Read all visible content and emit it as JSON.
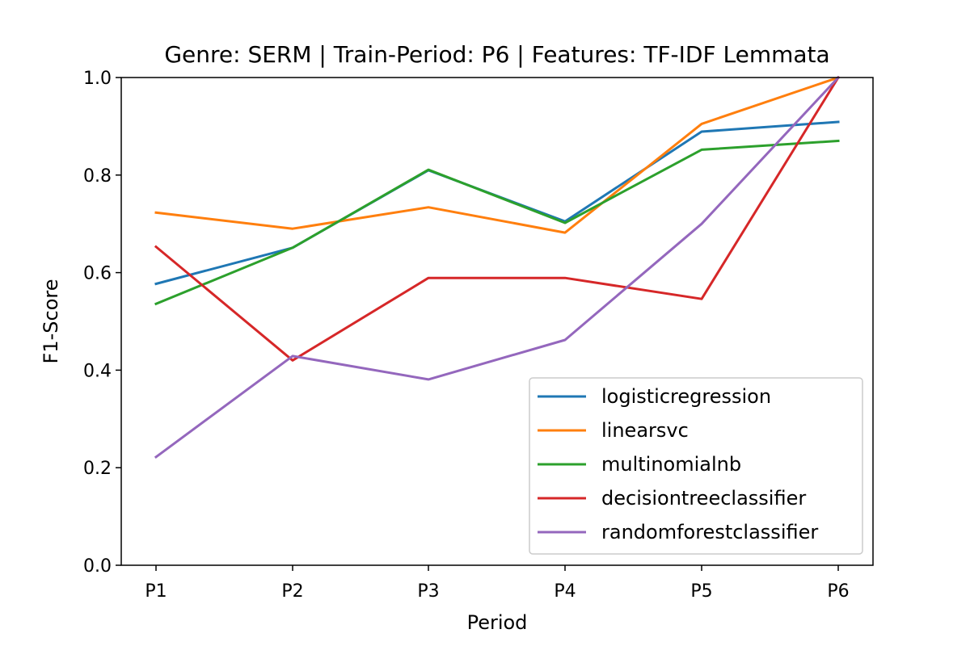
{
  "chart_data": {
    "type": "line",
    "title": "Genre: SERM | Train-Period: P6 | Features: TF-IDF Lemmata",
    "xlabel": "Period",
    "ylabel": "F1-Score",
    "categories": [
      "P1",
      "P2",
      "P3",
      "P4",
      "P5",
      "P6"
    ],
    "ylim": [
      0.0,
      1.0
    ],
    "yticks": [
      "0.0",
      "0.2",
      "0.4",
      "0.6",
      "0.8",
      "1.0"
    ],
    "grid": false,
    "legend_position": "lower-right",
    "series": [
      {
        "name": "logisticregression",
        "color": "#1f77b4",
        "values": [
          0.577,
          0.651,
          0.81,
          0.705,
          0.889,
          0.909
        ]
      },
      {
        "name": "linearsvc",
        "color": "#ff7f0e",
        "values": [
          0.723,
          0.69,
          0.734,
          0.682,
          0.905,
          1.0
        ]
      },
      {
        "name": "multinomialnb",
        "color": "#2ca02c",
        "values": [
          0.536,
          0.651,
          0.811,
          0.702,
          0.852,
          0.87
        ]
      },
      {
        "name": "decisiontreeclassifier",
        "color": "#d62728",
        "values": [
          0.653,
          0.42,
          0.589,
          0.589,
          0.546,
          1.0
        ]
      },
      {
        "name": "randomforestclassifier",
        "color": "#9467bd",
        "values": [
          0.222,
          0.429,
          0.381,
          0.462,
          0.7,
          1.0
        ]
      }
    ]
  }
}
